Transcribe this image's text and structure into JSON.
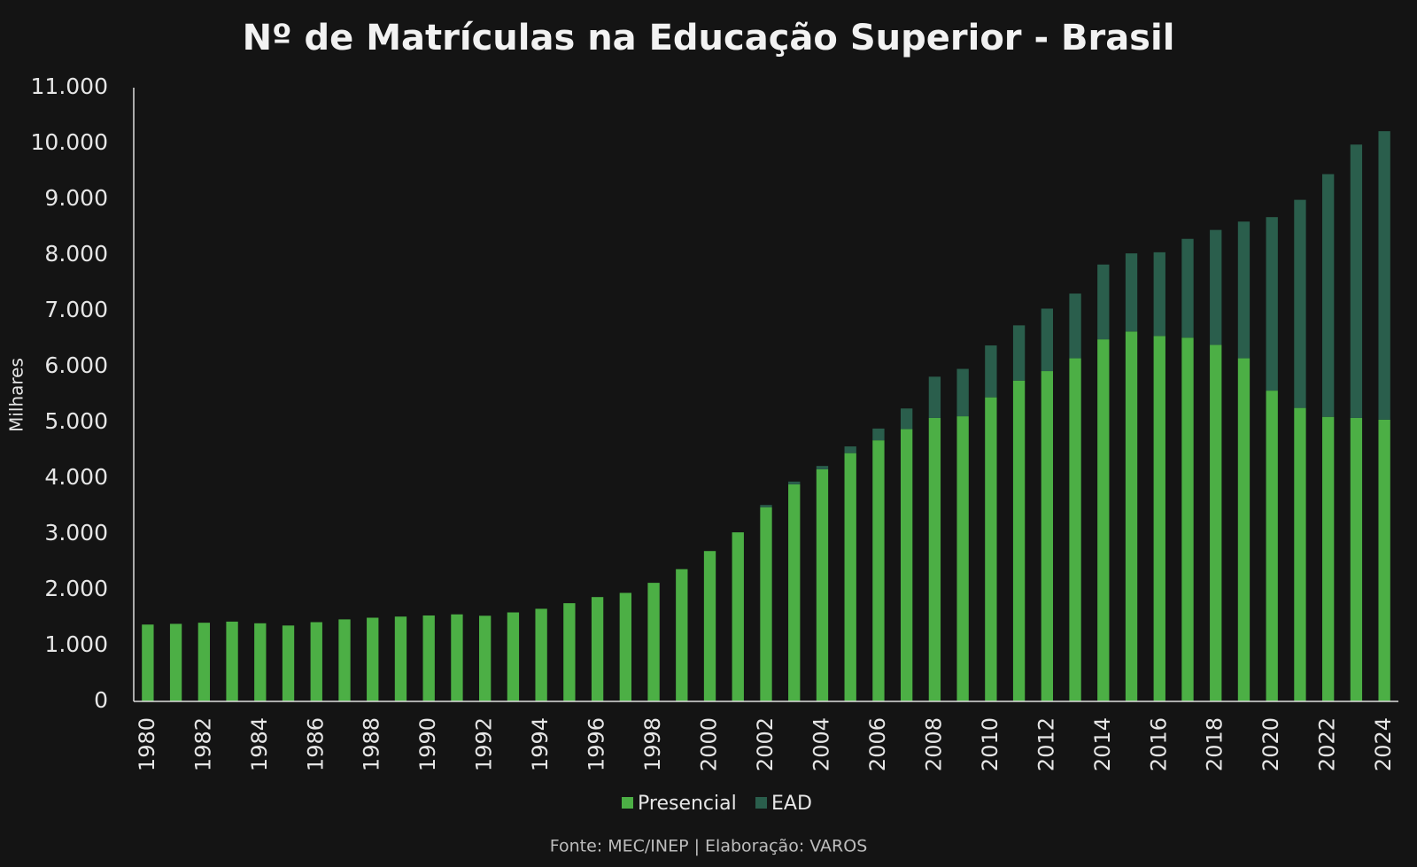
{
  "chart_data": {
    "type": "stacked_bar",
    "title": "Nº de Matrículas na Educação Superior - Brasil",
    "y_label": "Milhares",
    "source": "Fonte: MEC/INEP | Elaboração: VAROS",
    "categories": [
      "1980",
      null,
      "1982",
      null,
      "1984",
      null,
      "1986",
      null,
      "1988",
      null,
      "1990",
      null,
      "1992",
      null,
      "1994",
      null,
      "1996",
      null,
      "1998",
      null,
      "2000",
      null,
      "2002",
      null,
      "2004",
      null,
      "2006",
      null,
      "2008",
      null,
      "2010",
      null,
      "2012",
      null,
      "2014",
      null,
      "2016",
      null,
      "2018",
      null,
      "2020",
      null,
      "2022",
      null,
      "2024"
    ],
    "series": [
      {
        "name": "Presencial",
        "color": "#4caf45",
        "values": [
          1377,
          1390,
          1410,
          1430,
          1400,
          1360,
          1420,
          1470,
          1500,
          1520,
          1540,
          1560,
          1535,
          1595,
          1660,
          1760,
          1870,
          1945,
          2125,
          2370,
          2695,
          3030,
          3480,
          3890,
          4160,
          4450,
          4680,
          4880,
          5080,
          5110,
          5450,
          5750,
          5920,
          6150,
          6490,
          6630,
          6550,
          6520,
          6390,
          6150,
          5570,
          5260,
          5100,
          5080,
          5050
        ]
      },
      {
        "name": "EAD",
        "color": "#2a5e4c",
        "values": [
          0,
          0,
          0,
          0,
          0,
          0,
          0,
          0,
          0,
          0,
          0,
          0,
          0,
          0,
          0,
          0,
          0,
          0,
          0,
          0,
          0,
          0,
          40,
          50,
          60,
          120,
          210,
          370,
          740,
          850,
          930,
          990,
          1120,
          1160,
          1340,
          1400,
          1500,
          1770,
          2060,
          2450,
          3110,
          3730,
          4350,
          4900,
          5170
        ]
      }
    ],
    "ylim": [
      0,
      11000
    ],
    "yticks": [
      0,
      {
        "value": 1000,
        "label": "1.000"
      },
      {
        "value": 2000,
        "label": "2.000"
      },
      {
        "value": 3000,
        "label": "3.000"
      },
      {
        "value": 4000,
        "label": "4.000"
      },
      {
        "value": 5000,
        "label": "5.000"
      },
      {
        "value": 6000,
        "label": "6.000"
      },
      {
        "value": 7000,
        "label": "7.000"
      },
      {
        "value": 8000,
        "label": "8.000"
      },
      {
        "value": 9000,
        "label": "9.000"
      },
      {
        "value": 10000,
        "label": "10.000"
      },
      {
        "value": 11000,
        "label": "11.000"
      }
    ],
    "grid": false
  }
}
